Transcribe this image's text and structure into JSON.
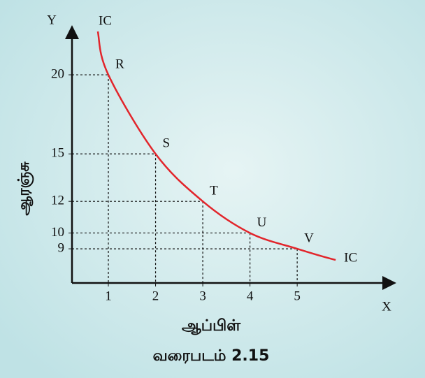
{
  "chart_data": {
    "type": "line",
    "x_axis_label": "X",
    "y_axis_label": "Y",
    "x_title": "ஆப்பிள்",
    "y_title": "ஆரஞ்சு",
    "caption": "வரைபடம் 2.15",
    "curve_label": "IC",
    "x": [
      1,
      2,
      3,
      4,
      5
    ],
    "series": [
      {
        "color": "#e2252b",
        "values": [
          20,
          15,
          12,
          10,
          9
        ],
        "point_labels": [
          "R",
          "S",
          "T",
          "U",
          "V"
        ]
      }
    ],
    "xlim": [
      0.23,
      7.1
    ],
    "ylim": [
      6.84,
      23.05
    ],
    "xticks": [
      1,
      2,
      3,
      4,
      5
    ],
    "yticks": [
      20,
      15,
      12,
      10,
      9
    ]
  }
}
